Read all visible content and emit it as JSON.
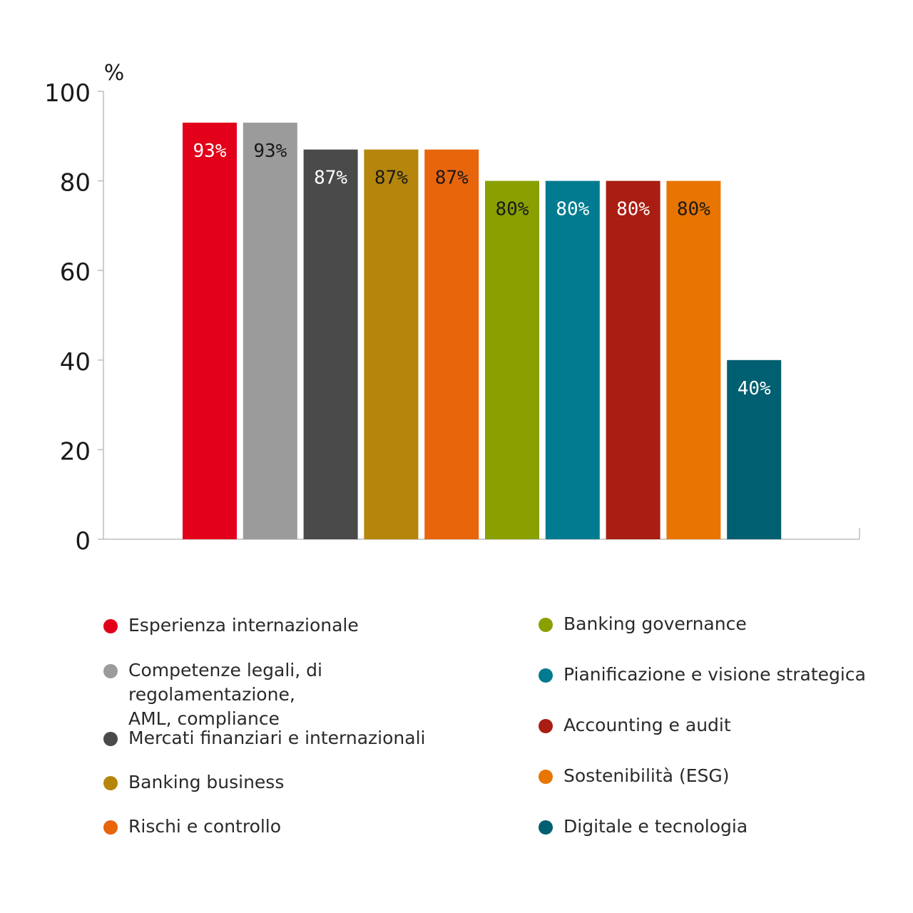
{
  "chart_data": {
    "type": "bar",
    "unit_label": "%",
    "ylim": [
      0,
      100
    ],
    "yticks": [
      0,
      20,
      40,
      60,
      80,
      100
    ],
    "grid": false,
    "legend_position": "bottom",
    "categories": [
      "Esperienza internazionale",
      "Competenze legali, di regolamentazione, AML, compliance",
      "Mercati finanziari e internazionali",
      "Banking business",
      "Rischi e controllo",
      "Banking governance",
      "Pianificazione e visione strategica",
      "Accounting e audit",
      "Sostenibilità (ESG)",
      "Digitale e tecnologia"
    ],
    "values": [
      93,
      93,
      87,
      87,
      87,
      80,
      80,
      80,
      80,
      40
    ],
    "value_labels": [
      "93%",
      "93%",
      "87%",
      "87%",
      "87%",
      "80%",
      "80%",
      "80%",
      "80%",
      "40%"
    ],
    "colors": [
      "#e2001a",
      "#9b9b9b",
      "#4a4a4a",
      "#b5850c",
      "#e8650c",
      "#8aa000",
      "#007b8f",
      "#a91d12",
      "#e87500",
      "#005f70"
    ],
    "label_colors": [
      "#ffffff",
      "#1a1a1a",
      "#ffffff",
      "#1a1a1a",
      "#1a1a1a",
      "#1a1a1a",
      "#ffffff",
      "#ffffff",
      "#1a1a1a",
      "#ffffff"
    ]
  },
  "legend": {
    "left": [
      {
        "label_lines": [
          "Esperienza internazionale"
        ],
        "color": "#e2001a"
      },
      {
        "label_lines": [
          "Competenze legali, di regolamentazione,",
          "AML, compliance"
        ],
        "color": "#9b9b9b"
      },
      {
        "label_lines": [
          "Mercati finanziari e internazionali"
        ],
        "color": "#4a4a4a"
      },
      {
        "label_lines": [
          "Banking business"
        ],
        "color": "#b5850c"
      },
      {
        "label_lines": [
          "Rischi e controllo"
        ],
        "color": "#e8650c"
      }
    ],
    "right": [
      {
        "label_lines": [
          "Banking governance"
        ],
        "color": "#8aa000"
      },
      {
        "label_lines": [
          "Pianificazione e visione strategica"
        ],
        "color": "#007b8f"
      },
      {
        "label_lines": [
          "Accounting e audit"
        ],
        "color": "#a91d12"
      },
      {
        "label_lines": [
          "Sostenibilità (ESG)"
        ],
        "color": "#e87500"
      },
      {
        "label_lines": [
          "Digitale e tecnologia"
        ],
        "color": "#005f70"
      }
    ]
  }
}
